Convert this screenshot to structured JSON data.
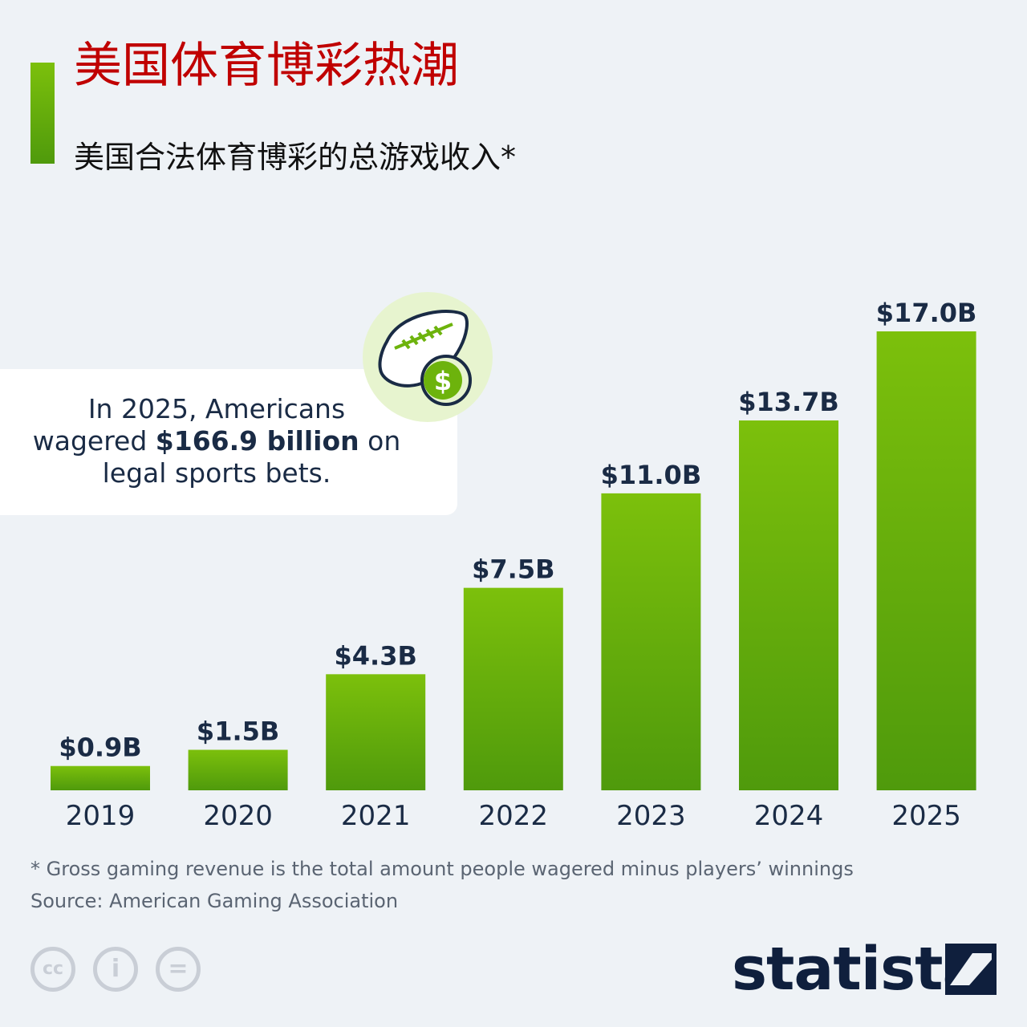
{
  "title": "美国体育博彩热潮",
  "subtitle": "美国合法体育博彩的总游戏收入*",
  "callout": {
    "line1": "In 2025, Americans",
    "line2_prefix": "wagered ",
    "line2_bold": "$166.9 billion",
    "line2_suffix": " on",
    "line3": "legal sports bets."
  },
  "chart_data": {
    "type": "bar",
    "categories": [
      "2019",
      "2020",
      "2021",
      "2022",
      "2023",
      "2024",
      "2025"
    ],
    "values": [
      0.9,
      1.5,
      4.3,
      7.5,
      11.0,
      13.7,
      17.0
    ],
    "value_labels": [
      "$0.9B",
      "$1.5B",
      "$4.3B",
      "$7.5B",
      "$11.0B",
      "$13.7B",
      "$17.0B"
    ],
    "title": "美国合法体育博彩的总游戏收入*",
    "xlabel": "",
    "ylabel": "",
    "ylim": [
      0,
      17.0
    ],
    "grid": false,
    "bar_color_top": "#7cc00c",
    "bar_color_bottom": "#4f9a0c"
  },
  "footnote": "* Gross gaming revenue is the total amount people wagered minus players’ winnings",
  "source": "Source: American Gaming Association",
  "license_icons": [
    "cc-icon",
    "attribution-icon",
    "no-derivatives-icon"
  ],
  "license_glyphs": [
    "cc",
    "i",
    "="
  ],
  "logo": {
    "text": "statista",
    "color": "#0f1f3d"
  },
  "colors": {
    "accent": "#7cc00c",
    "title": "#c00000",
    "label": "#1a2b45"
  }
}
